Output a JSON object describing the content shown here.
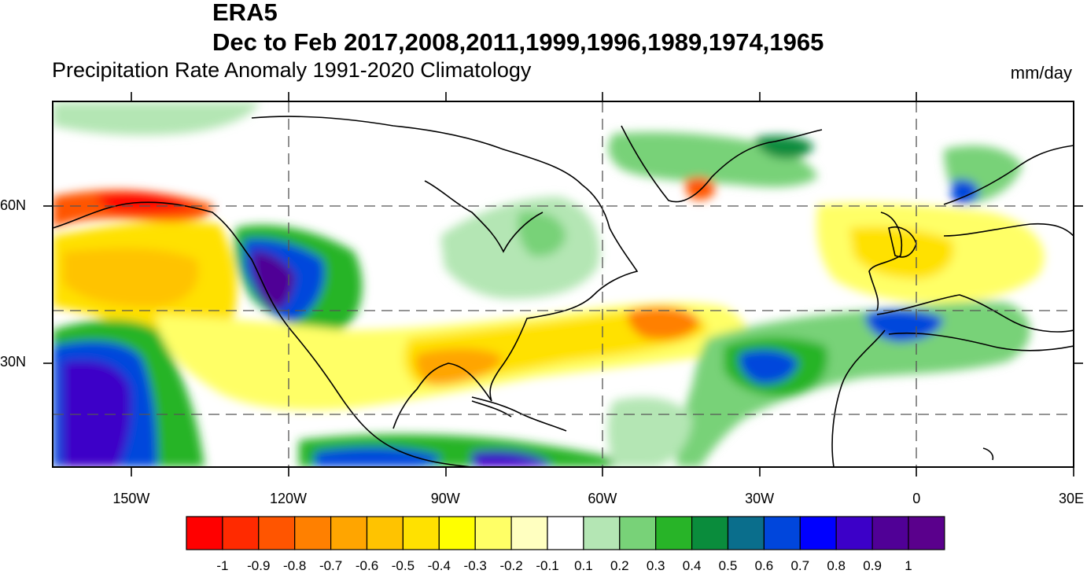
{
  "title": "ERA5",
  "subtitle": "Dec to Feb 2017,2008,2011,1999,1996,1989,1974,1965",
  "variable": "Precipitation Rate Anomaly  1991-2020 Climatology",
  "units": "mm/day",
  "lat_labels": [
    {
      "label": "60N",
      "lat": 60
    },
    {
      "label": "30N",
      "lat": 30
    }
  ],
  "lon_labels": [
    {
      "label": "150W",
      "lon": -150
    },
    {
      "label": "120W",
      "lon": -120
    },
    {
      "label": "90W",
      "lon": -90
    },
    {
      "label": "60W",
      "lon": -60
    },
    {
      "label": "30W",
      "lon": -30
    },
    {
      "label": "0",
      "lon": 0
    },
    {
      "label": "30E",
      "lon": 30
    }
  ],
  "colorbar": {
    "levels": [
      "-1",
      "-0.9",
      "-0.8",
      "-0.7",
      "-0.6",
      "-0.5",
      "-0.4",
      "-0.3",
      "-0.2",
      "-0.1",
      "0.1",
      "0.2",
      "0.3",
      "0.4",
      "0.5",
      "0.6",
      "0.7",
      "0.8",
      "0.9",
      "1"
    ],
    "colors": [
      "#ff0000",
      "#ff2a00",
      "#ff5500",
      "#ff8000",
      "#ffa500",
      "#ffc300",
      "#ffe100",
      "#ffff00",
      "#ffff66",
      "#ffffc0",
      "#ffffff",
      "#b4e6b4",
      "#78d278",
      "#28b428",
      "#0a8c3c",
      "#0a6e8c",
      "#0046dc",
      "#0000ff",
      "#3c00c8",
      "#500096",
      "#5a008c"
    ]
  },
  "map_extent": {
    "lon_min": -165,
    "lon_max": 30,
    "lat_min": 10,
    "lat_max": 80
  }
}
